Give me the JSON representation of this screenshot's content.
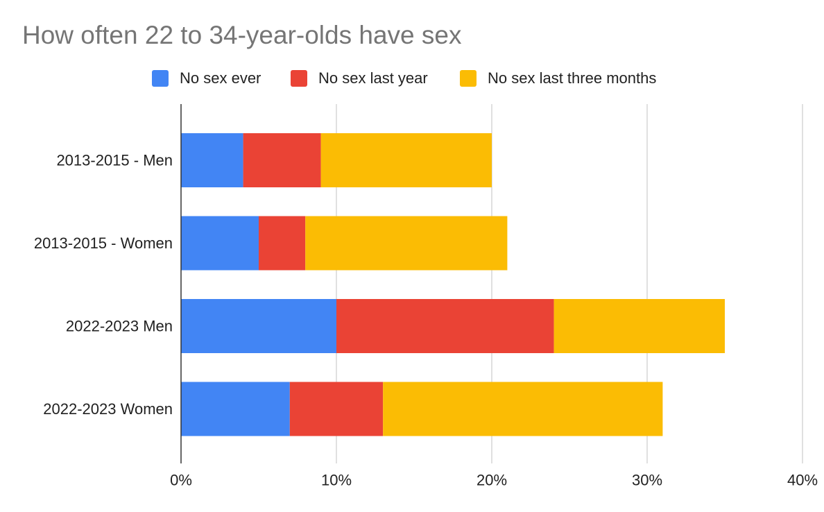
{
  "title": "How often 22 to 34-year-olds have sex",
  "colors": {
    "no_sex_ever": "#4285F4",
    "no_sex_last_year": "#EA4335",
    "no_sex_last_three_months": "#FBBC04",
    "grid": "#CCCCCC",
    "axis": "#333333",
    "title": "#757575"
  },
  "chart_data": {
    "type": "bar",
    "orientation": "horizontal",
    "stacked": true,
    "title": "How often 22 to 34-year-olds have sex",
    "categories": [
      "2013-2015 - Men",
      "2013-2015 - Women",
      "2022-2023 Men",
      "2022-2023 Women"
    ],
    "series": [
      {
        "name": "No sex ever",
        "color": "#4285F4",
        "values": [
          4,
          5,
          10,
          7
        ]
      },
      {
        "name": "No sex last year",
        "color": "#EA4335",
        "values": [
          5,
          3,
          14,
          6
        ]
      },
      {
        "name": "No sex last three months",
        "color": "#FBBC04",
        "values": [
          11,
          13,
          11,
          18
        ]
      }
    ],
    "xlim": [
      0,
      40
    ],
    "xticks": [
      0,
      10,
      20,
      30,
      40
    ],
    "xtick_labels": [
      "0%",
      "10%",
      "20%",
      "30%",
      "40%"
    ],
    "xlabel": "",
    "ylabel": "",
    "grid": true,
    "legend_position": "top"
  }
}
